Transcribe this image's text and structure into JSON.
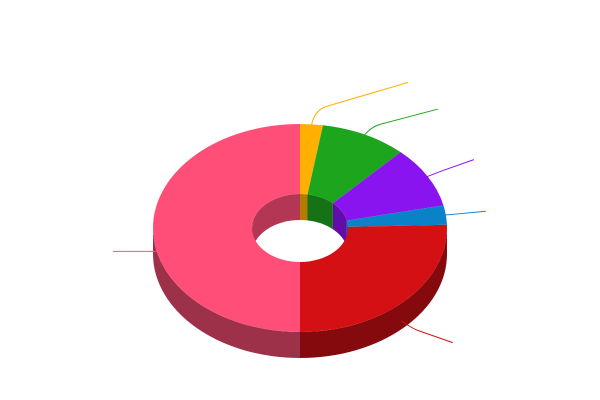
{
  "chart_data": {
    "type": "pie",
    "style": "3d-donut",
    "title": "",
    "legend": "none",
    "labels_visible": false,
    "slices": [
      {
        "value": 2.5,
        "color": "#ffb000"
      },
      {
        "value": 9.5,
        "color": "#1ea51e"
      },
      {
        "value": 9.5,
        "color": "#8a14f0"
      },
      {
        "value": 3.0,
        "color": "#0a82c8"
      },
      {
        "value": 25.5,
        "color": "#d51015"
      },
      {
        "value": 50.0,
        "color": "#ff4f78"
      }
    ]
  }
}
